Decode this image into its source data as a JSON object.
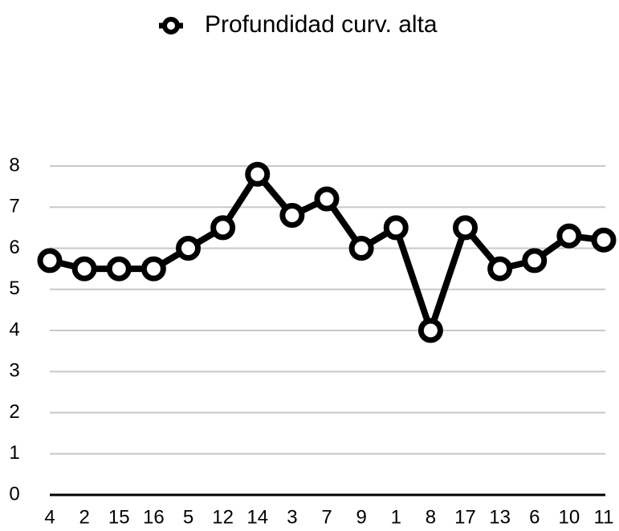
{
  "chart_data": {
    "type": "line",
    "categories": [
      "4",
      "2",
      "15",
      "16",
      "5",
      "12",
      "14",
      "3",
      "7",
      "9",
      "1",
      "8",
      "17",
      "13",
      "6",
      "10",
      "11"
    ],
    "series": [
      {
        "name": "Profundidad curv. alta",
        "color": "#000000",
        "values": [
          5.7,
          5.5,
          5.5,
          5.5,
          6,
          6.5,
          7.8,
          6.8,
          7.2,
          6,
          6.5,
          4,
          6.5,
          5.5,
          5.7,
          6.3,
          6.2
        ]
      }
    ],
    "ylim": [
      0,
      8
    ],
    "yticks": [
      0,
      1,
      2,
      3,
      4,
      5,
      6,
      7,
      8
    ],
    "grid": true,
    "legend": "top"
  }
}
